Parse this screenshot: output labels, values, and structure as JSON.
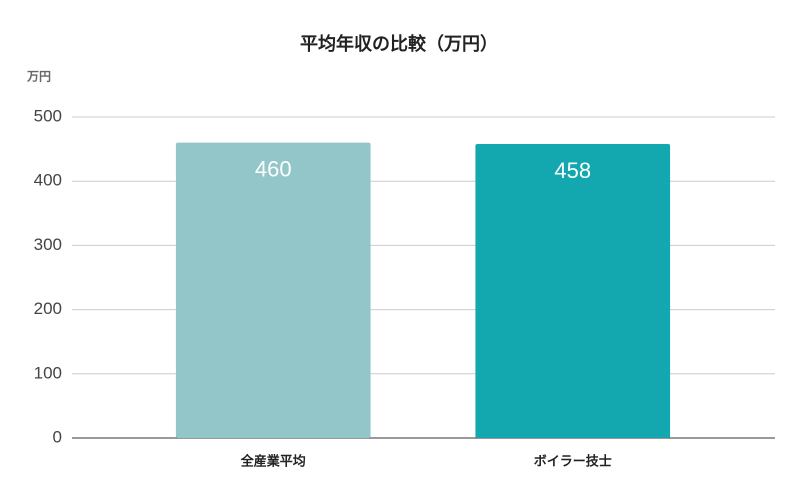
{
  "chart_data": {
    "type": "bar",
    "title": "平均年収の比較（万円）",
    "y_label": "万円",
    "categories": [
      "全産業平均",
      "ボイラー技士"
    ],
    "values": [
      460,
      458
    ],
    "colors": [
      "#93c6c9",
      "#13a8b0"
    ],
    "ylim": [
      0,
      500
    ],
    "yticks": [
      0,
      100,
      200,
      300,
      400,
      500
    ],
    "grid": true
  }
}
